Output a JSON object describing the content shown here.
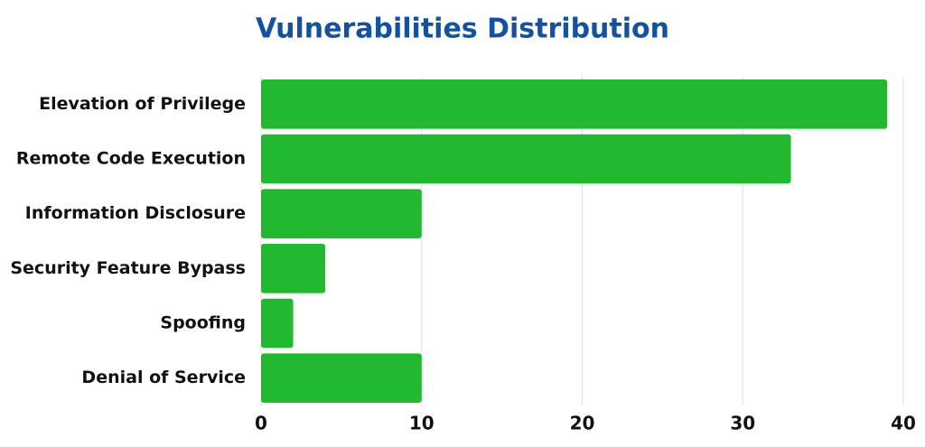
{
  "chart_data": {
    "type": "bar",
    "orientation": "horizontal",
    "title": "Vulnerabilities Distribution",
    "categories": [
      "Elevation of Privilege",
      "Remote Code Execution",
      "Information Disclosure",
      "Security Feature Bypass",
      "Spoofing",
      "Denial of Service"
    ],
    "values": [
      39,
      33,
      10,
      4,
      2,
      10
    ],
    "color": "#22b830",
    "xlim": [
      0,
      40
    ],
    "xticks": [
      0,
      10,
      20,
      30,
      40
    ],
    "grid": true
  }
}
